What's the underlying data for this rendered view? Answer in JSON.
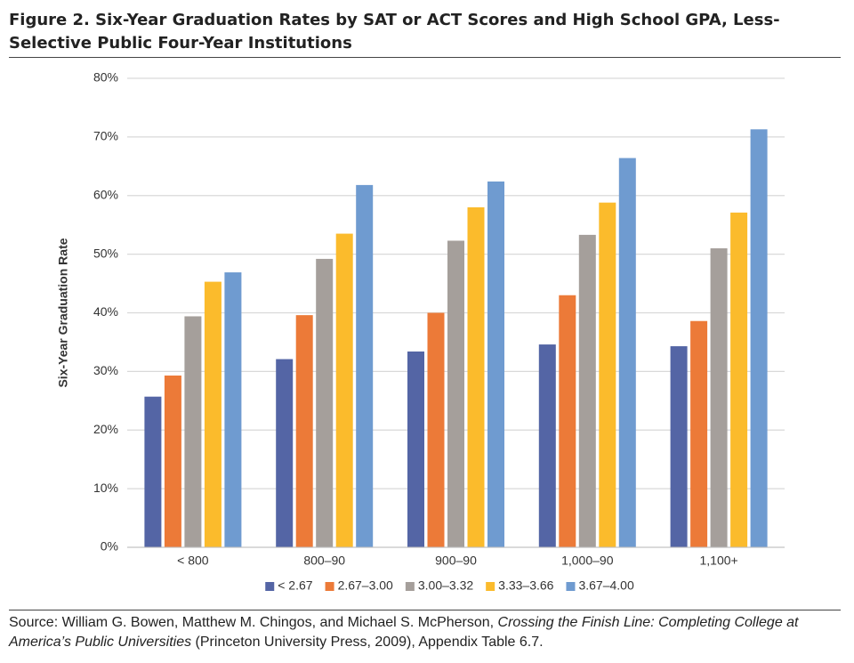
{
  "chart_data": {
    "type": "bar",
    "title": "Figure 2. Six-Year Graduation Rates by SAT or ACT Scores and High School GPA, Less-Selective Public Four-Year Institutions",
    "y_label": "Six-Year Graduation Rate",
    "categories": [
      "< 800",
      "800–90",
      "900–90",
      "1,000–90",
      "1,100+"
    ],
    "series": [
      {
        "name": "< 2.67",
        "color": "#5465a5",
        "values": [
          25.7,
          32.1,
          33.4,
          34.6,
          34.3
        ]
      },
      {
        "name": "2.67–3.00",
        "color": "#ec7a38",
        "values": [
          29.3,
          39.6,
          40.0,
          43.0,
          38.6
        ]
      },
      {
        "name": "3.00–3.32",
        "color": "#a59f9b",
        "values": [
          39.4,
          49.2,
          52.3,
          53.3,
          51.0
        ]
      },
      {
        "name": "3.33–3.66",
        "color": "#fbbb2c",
        "values": [
          45.3,
          53.5,
          58.0,
          58.8,
          57.1
        ]
      },
      {
        "name": "3.67–4.00",
        "color": "#6f9bd0",
        "values": [
          46.9,
          61.8,
          62.4,
          66.4,
          71.3
        ]
      }
    ],
    "ylim": [
      0,
      80
    ],
    "yticks": [
      {
        "value": 0,
        "label": "0%"
      },
      {
        "value": 10,
        "label": "10%"
      },
      {
        "value": 20,
        "label": "20%"
      },
      {
        "value": 30,
        "label": "30%"
      },
      {
        "value": 40,
        "label": "40%"
      },
      {
        "value": 50,
        "label": "50%"
      },
      {
        "value": 60,
        "label": "60%"
      },
      {
        "value": 70,
        "label": "70%"
      },
      {
        "value": 80,
        "label": "80%"
      }
    ],
    "grid": true,
    "legend": "bottom",
    "source": {
      "prefix": "Source: William G. Bowen, Matthew M. Chingos, and Michael S. McPherson, ",
      "title": "Crossing the Finish Line: Completing College at America’s Public Universities",
      "suffix": " (Princeton University Press, 2009), Appendix Table 6.7."
    }
  }
}
